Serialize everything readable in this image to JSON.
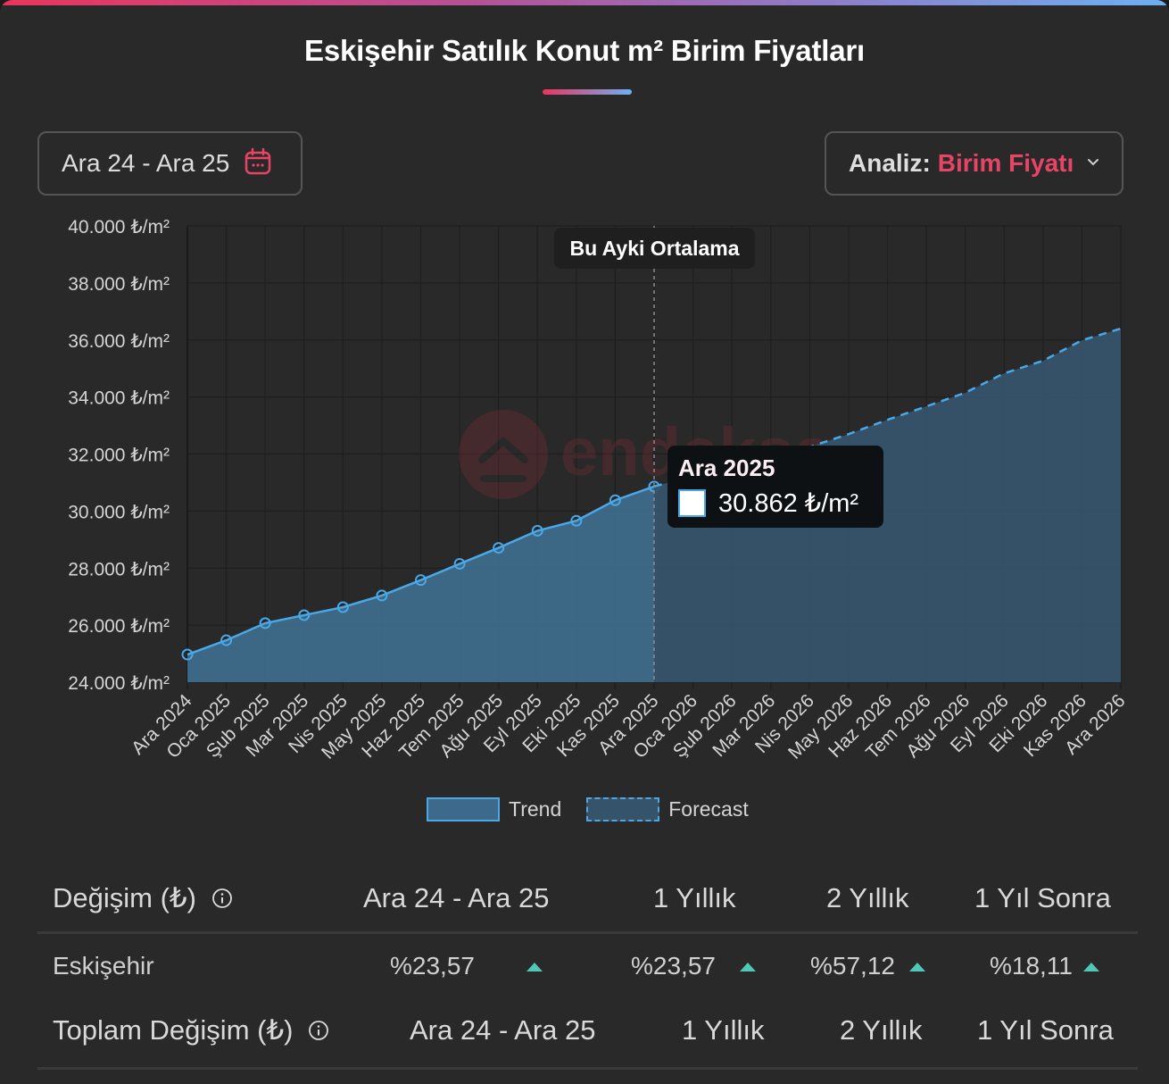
{
  "header": {
    "title": "Eskişehir Satılık Konut m² Birim Fiyatları"
  },
  "controls": {
    "date_range": "Ara 24 - Ara 25",
    "date_icon": "calendar-icon",
    "analysis_label": "Analiz:",
    "analysis_value": "Birim Fiyatı",
    "analysis_icon": "chevron-down-icon"
  },
  "colors": {
    "accent": "#e84466",
    "trend_line": "#4aa8e6",
    "trend_fill": "#3d6a8a",
    "forecast_fill": "#36536a",
    "up_arrow": "#4fc8b8"
  },
  "annotations": {
    "current_marker": "Bu Ayki Ortalama",
    "tooltip_title": "Ara 2025",
    "tooltip_value": "30.862 ₺/m²",
    "watermark": "endeksa"
  },
  "legend": {
    "trend": "Trend",
    "forecast": "Forecast"
  },
  "chart_data": {
    "type": "area",
    "title": "Eskişehir Satılık Konut m² Birim Fiyatları",
    "xlabel": "",
    "ylabel": "₺/m²",
    "ylim": [
      24000,
      40000
    ],
    "yticks": [
      "24.000 ₺/m²",
      "26.000 ₺/m²",
      "28.000 ₺/m²",
      "30.000 ₺/m²",
      "32.000 ₺/m²",
      "34.000 ₺/m²",
      "36.000 ₺/m²",
      "38.000 ₺/m²",
      "40.000 ₺/m²"
    ],
    "categories": [
      "Ara 2024",
      "Oca 2025",
      "Şub 2025",
      "Mar 2025",
      "Nis 2025",
      "May 2025",
      "Haz 2025",
      "Tem 2025",
      "Ağu 2025",
      "Eyl 2025",
      "Eki 2025",
      "Kas 2025",
      "Ara 2025",
      "Oca 2026",
      "Şub 2026",
      "Mar 2026",
      "Nis 2026",
      "May 2026",
      "Haz 2026",
      "Tem 2026",
      "Ağu 2026",
      "Eyl 2026",
      "Eki 2026",
      "Kas 2026",
      "Ara 2026"
    ],
    "series": [
      {
        "name": "Trend",
        "style": "solid",
        "values": [
          24970,
          25470,
          26070,
          26350,
          26630,
          27040,
          27580,
          28150,
          28710,
          29310,
          29660,
          30380,
          30862,
          null,
          null,
          null,
          null,
          null,
          null,
          null,
          null,
          null,
          null,
          null,
          null
        ]
      },
      {
        "name": "Forecast",
        "style": "dashed",
        "values": [
          null,
          null,
          null,
          null,
          null,
          null,
          null,
          null,
          null,
          null,
          null,
          null,
          30862,
          31230,
          31640,
          31950,
          32250,
          32700,
          33200,
          33670,
          34150,
          34830,
          35270,
          35990,
          36400
        ]
      }
    ],
    "grid": true,
    "legend_position": "bottom",
    "highlight": {
      "category": "Ara 2025",
      "label": "Bu Ayki Ortalama",
      "value": 30862
    }
  },
  "table": {
    "section1": {
      "title": "Değişim (₺)",
      "columns": [
        "Ara 24 - Ara 25",
        "1 Yıllık",
        "2 Yıllık",
        "1 Yıl Sonra"
      ],
      "rows": [
        {
          "label": "Eskişehir",
          "values": [
            "%23,57",
            "%23,57",
            "%57,12",
            "%18,11"
          ],
          "trend": [
            "up",
            "up",
            "up",
            "up"
          ]
        }
      ]
    },
    "section2": {
      "title": "Toplam Değişim (₺)",
      "columns": [
        "Ara 24 - Ara 25",
        "1 Yıllık",
        "2 Yıllık",
        "1 Yıl Sonra"
      ]
    }
  }
}
